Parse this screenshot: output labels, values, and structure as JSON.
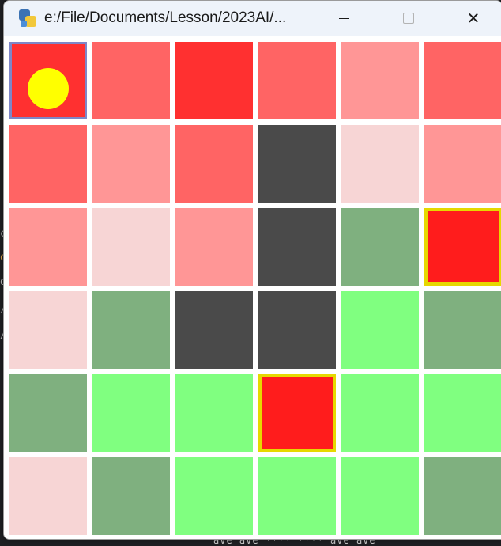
{
  "window": {
    "title": "e:/File/Documents/Lesson/2023AI/...",
    "controls": {
      "minimize": "minimize",
      "maximize": "maximize",
      "close": "✕"
    }
  },
  "background": {
    "editor_fragments": [
      "c",
      "o",
      "d",
      "/",
      "/"
    ],
    "bottom_text": "ave ave **** **** ave ave"
  },
  "colors": {
    "r_dark": "#ff3030",
    "r_med": "#ff6464",
    "r_light": "#ff9696",
    "r_pale": "#f7d5d5",
    "wall": "#4a4a4a",
    "grass_dark": "#7fb07f",
    "grass_light": "#80ff80",
    "goal": "#ff1c1c",
    "goal_border": "#e6d800",
    "agent": "#ffff00",
    "current_border": "#7f86c7"
  },
  "grid": {
    "rows": 6,
    "cols": 6,
    "cells": [
      [
        "r_dark",
        "r_med",
        "r_dark",
        "r_med",
        "r_light",
        "r_med"
      ],
      [
        "r_med",
        "r_light",
        "r_med",
        "wall",
        "r_pale",
        "r_light"
      ],
      [
        "r_light",
        "r_pale",
        "r_light",
        "wall",
        "grass_dark",
        "goal"
      ],
      [
        "r_pale",
        "grass_dark",
        "wall",
        "wall",
        "grass_light",
        "grass_dark"
      ],
      [
        "grass_dark",
        "grass_light",
        "grass_light",
        "goal",
        "grass_light",
        "grass_light"
      ],
      [
        "r_pale",
        "grass_dark",
        "grass_light",
        "grass_light",
        "grass_light",
        "grass_dark"
      ]
    ],
    "agent": {
      "row": 0,
      "col": 0
    },
    "goals": [
      {
        "row": 2,
        "col": 5
      },
      {
        "row": 4,
        "col": 3
      }
    ]
  }
}
